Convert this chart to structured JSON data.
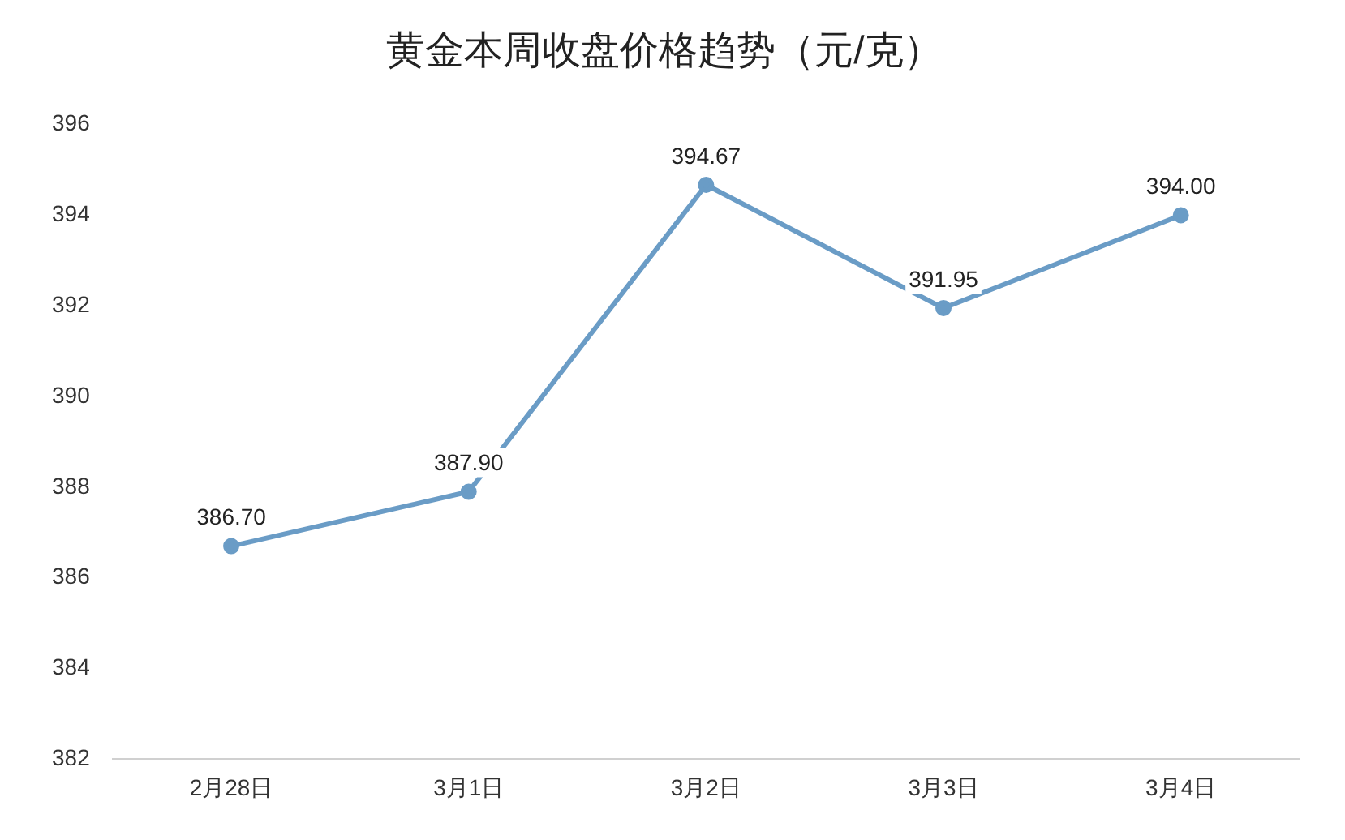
{
  "chart_data": {
    "type": "line",
    "title": "黄金本周收盘价格趋势（元/克）",
    "categories": [
      "2月28日",
      "3月1日",
      "3月2日",
      "3月3日",
      "3月4日"
    ],
    "series": [
      {
        "color": "#6a9cc6",
        "values": [
          386.7,
          387.9,
          394.67,
          391.95,
          394.0
        ]
      }
    ],
    "value_labels": [
      "386.70",
      "387.90",
      "394.67",
      "391.95",
      "394.00"
    ],
    "ylim": [
      382,
      396
    ],
    "yticks": [
      382,
      384,
      386,
      388,
      390,
      392,
      394,
      396
    ],
    "grid": false,
    "legend": false,
    "marker": "circle",
    "line_style": "solid"
  }
}
